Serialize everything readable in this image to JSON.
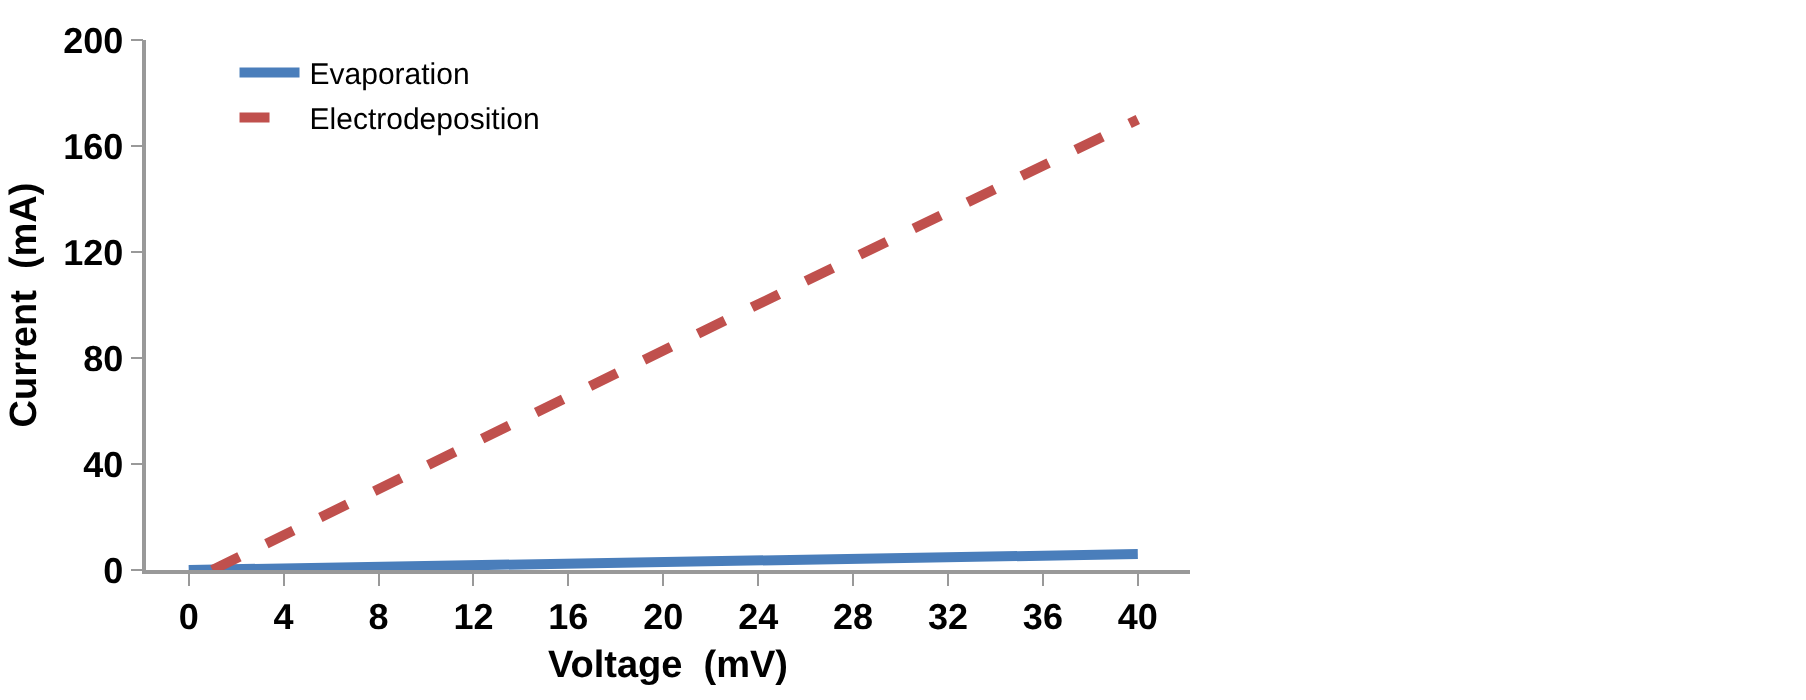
{
  "chart_data": {
    "type": "line",
    "xlabel": "Voltage  (mV)",
    "ylabel": "Current  (mA)",
    "series": [
      {
        "name": "Evaporation",
        "color": "#4a7ebb",
        "x": [
          0,
          40
        ],
        "values": [
          0,
          6
        ],
        "line_style": "solid"
      },
      {
        "name": "Electrodeposition",
        "color": "#c0504d",
        "x": [
          1,
          40
        ],
        "values": [
          0,
          170
        ],
        "line_style": "dashed"
      }
    ],
    "xlim": [
      -1.8,
      42.2
    ],
    "xticks": [
      0,
      4,
      8,
      12,
      16,
      20,
      24,
      28,
      32,
      36,
      40
    ],
    "ylim": [
      0,
      200
    ],
    "yticks": [
      0,
      40,
      80,
      120,
      160,
      200
    ],
    "legend": "top left",
    "marker": "none"
  }
}
